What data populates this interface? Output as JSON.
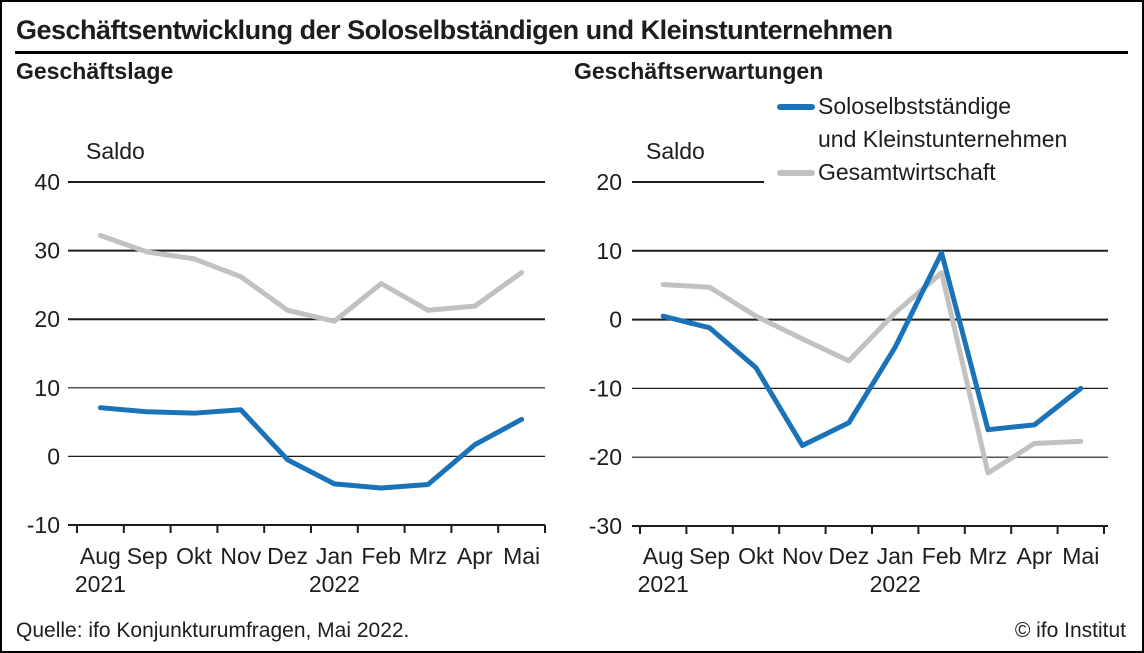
{
  "header": {
    "title": "Geschäftsentwicklung der Soloselbständigen und Kleinstunternehmen"
  },
  "legend": {
    "series1_line1": "Soloselbstständige",
    "series1_line2": "und Kleinstunternehmen",
    "series2_label": "Gesamtwirtschaft",
    "series1_color": "#1a73b8",
    "series2_color": "#c1c1c1"
  },
  "footer": {
    "source": "Quelle: ifo Konjunkturumfragen, Mai 2022.",
    "copyright": "© ifo Institut"
  },
  "chart_data": [
    {
      "type": "line",
      "title": "Geschäftslage",
      "ylabel": "Saldo",
      "categories": [
        "Aug",
        "Sep",
        "Okt",
        "Nov",
        "Dez",
        "Jan",
        "Feb",
        "Mrz",
        "Apr",
        "Mai"
      ],
      "year_labels": [
        {
          "index": 0,
          "label": "2021"
        },
        {
          "index": 5,
          "label": "2022"
        }
      ],
      "ylim": [
        -10,
        40
      ],
      "ytick_step": 10,
      "grid": true,
      "legend_position": "none",
      "series": [
        {
          "name": "Soloselbstständige und Kleinstunternehmen",
          "color": "#1a73b8",
          "values": [
            7.1,
            6.5,
            6.3,
            6.8,
            -0.5,
            -4.0,
            -4.6,
            -4.1,
            1.7,
            5.4
          ]
        },
        {
          "name": "Gesamtwirtschaft",
          "color": "#c1c1c1",
          "values": [
            32.2,
            29.8,
            28.8,
            26.2,
            21.3,
            19.7,
            25.2,
            21.3,
            21.9,
            26.8
          ]
        }
      ]
    },
    {
      "type": "line",
      "title": "Geschäftserwartungen",
      "ylabel": "Saldo",
      "categories": [
        "Aug",
        "Sep",
        "Okt",
        "Nov",
        "Dez",
        "Jan",
        "Feb",
        "Mrz",
        "Apr",
        "Mai"
      ],
      "year_labels": [
        {
          "index": 0,
          "label": "2021"
        },
        {
          "index": 5,
          "label": "2022"
        }
      ],
      "ylim": [
        -30,
        20
      ],
      "ytick_step": 10,
      "grid": true,
      "legend_position": "top-right",
      "series": [
        {
          "name": "Soloselbstständige und Kleinstunternehmen",
          "color": "#1a73b8",
          "values": [
            0.5,
            -1.2,
            -7.0,
            -18.3,
            -15.0,
            -4.0,
            9.7,
            -16.0,
            -15.3,
            -10.0
          ]
        },
        {
          "name": "Gesamtwirtschaft",
          "color": "#c1c1c1",
          "values": [
            5.1,
            4.7,
            0.5,
            -2.8,
            -6.0,
            1.0,
            6.8,
            -22.3,
            -18.0,
            -17.7
          ]
        }
      ]
    }
  ]
}
